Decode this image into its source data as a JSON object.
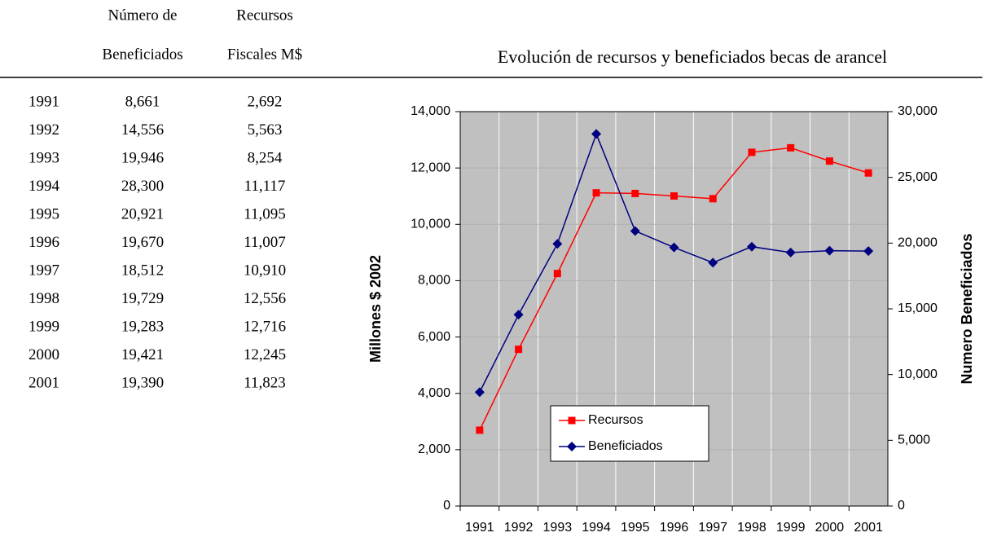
{
  "table": {
    "headers": [
      [
        "Número de",
        "Beneficiados"
      ],
      [
        "Recursos",
        "Fiscales M$"
      ]
    ],
    "rows": [
      [
        "1991",
        "8,661",
        "2,692"
      ],
      [
        "1992",
        "14,556",
        "5,563"
      ],
      [
        "1993",
        "19,946",
        "8,254"
      ],
      [
        "1994",
        "28,300",
        "11,117"
      ],
      [
        "1995",
        "20,921",
        "11,095"
      ],
      [
        "1996",
        "19,670",
        "11,007"
      ],
      [
        "1997",
        "18,512",
        "10,910"
      ],
      [
        "1998",
        "19,729",
        "12,556"
      ],
      [
        "1999",
        "19,283",
        "12,716"
      ],
      [
        "2000",
        "19,421",
        "12,245"
      ],
      [
        "2001",
        "19,390",
        "11,823"
      ]
    ]
  },
  "chart_data": {
    "type": "line",
    "title": "Evolución de recursos y beneficiados becas de arancel",
    "categories": [
      "1991",
      "1992",
      "1993",
      "1994",
      "1995",
      "1996",
      "1997",
      "1998",
      "1999",
      "2000",
      "2001"
    ],
    "series": [
      {
        "name": "Recursos",
        "color": "#ff0000",
        "marker": "square",
        "values": [
          2692,
          5563,
          8254,
          11117,
          11095,
          11007,
          10910,
          12556,
          12716,
          12245,
          11823
        ]
      },
      {
        "name": "Beneficiados",
        "color": "#000080",
        "marker": "diamond",
        "axis": "y2",
        "values": [
          8661,
          14556,
          19946,
          28300,
          20921,
          19670,
          18512,
          19729,
          19283,
          19421,
          19390
        ]
      }
    ],
    "ylabel": "Millones $ 2002",
    "y2label": "Numero Beneficiados",
    "ylim": [
      0,
      14000
    ],
    "yticks": [
      0,
      {
        "value": 2000,
        "label": "2,000"
      },
      {
        "value": 4000,
        "label": "4,000"
      },
      {
        "value": 6000,
        "label": "6,000"
      },
      {
        "value": 8000,
        "label": "8,000"
      },
      {
        "value": 10000,
        "label": "10,000"
      },
      {
        "value": 12000,
        "label": "12,000"
      },
      {
        "value": 14000,
        "label": "14,000"
      }
    ],
    "y2lim": [
      0,
      30000
    ],
    "y2ticks": [
      0,
      {
        "value": 5000,
        "label": "5,000"
      },
      {
        "value": 10000,
        "label": "10,000"
      },
      {
        "value": 15000,
        "label": "15,000"
      },
      {
        "value": 20000,
        "label": "20,000"
      },
      {
        "value": 25000,
        "label": "25,000"
      },
      {
        "value": 30000,
        "label": "30,000"
      }
    ],
    "grid": true,
    "legend": "lower-left"
  }
}
